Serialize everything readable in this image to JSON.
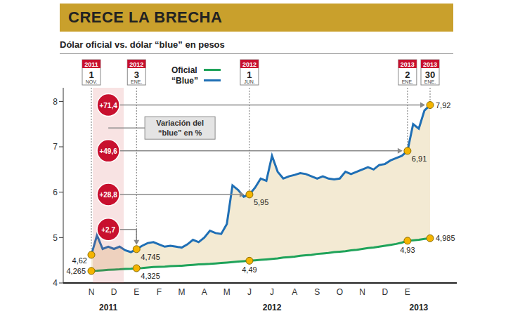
{
  "chart_data": {
    "type": "line",
    "title": "CRECE LA BRECHA",
    "subtitle": "Dólar oficial vs. dólar “blue” en pesos",
    "legend": "top",
    "grid": false,
    "categories": [
      "N",
      null,
      null,
      null,
      "D",
      null,
      null,
      null,
      "E",
      null,
      null,
      null,
      "F",
      null,
      null,
      null,
      "M",
      null,
      null,
      null,
      "A",
      null,
      null,
      null,
      "M",
      null,
      null,
      null,
      "J",
      null,
      null,
      null,
      "J",
      null,
      null,
      null,
      "A",
      null,
      null,
      null,
      "S",
      null,
      null,
      null,
      "O",
      null,
      null,
      null,
      "N",
      null,
      null,
      null,
      "D",
      null,
      null,
      null,
      "E",
      null,
      null,
      null,
      null
    ],
    "year_labels": [
      null,
      null,
      null,
      "2011",
      null,
      null,
      null,
      null,
      null,
      null,
      null,
      null,
      null,
      null,
      null,
      null,
      null,
      null,
      null,
      null,
      null,
      null,
      null,
      null,
      null,
      null,
      null,
      null,
      null,
      null,
      null,
      null,
      "2012",
      null,
      null,
      null,
      null,
      null,
      null,
      null,
      null,
      null,
      null,
      null,
      null,
      null,
      null,
      null,
      null,
      null,
      null,
      null,
      null,
      null,
      null,
      null,
      null,
      null,
      "2013",
      null,
      null
    ],
    "series": [
      {
        "name": "Oficial",
        "color": "#1fa35a",
        "values": [
          4.265,
          4.27,
          4.28,
          4.29,
          4.295,
          4.3,
          4.31,
          4.315,
          4.325,
          4.33,
          4.34,
          4.35,
          4.355,
          4.36,
          4.37,
          4.375,
          4.38,
          4.39,
          4.4,
          4.41,
          4.415,
          4.42,
          4.43,
          4.44,
          4.45,
          4.46,
          4.47,
          4.48,
          4.49,
          4.5,
          4.51,
          4.52,
          4.53,
          4.54,
          4.56,
          4.57,
          4.58,
          4.6,
          4.61,
          4.62,
          4.64,
          4.65,
          4.66,
          4.68,
          4.69,
          4.7,
          4.72,
          4.73,
          4.75,
          4.77,
          4.78,
          4.8,
          4.82,
          4.84,
          4.86,
          4.89,
          4.93,
          4.94,
          4.95,
          4.97,
          4.985
        ]
      },
      {
        "name": "“Blue”",
        "color": "#1f6fb5",
        "values": [
          4.62,
          5.05,
          4.75,
          4.8,
          4.75,
          4.8,
          4.72,
          4.68,
          4.745,
          4.82,
          4.88,
          4.9,
          4.85,
          4.8,
          4.82,
          4.8,
          4.78,
          4.85,
          4.95,
          4.9,
          5.0,
          5.15,
          5.1,
          5.08,
          5.3,
          6.15,
          6.05,
          5.9,
          5.95,
          6.1,
          6.3,
          6.25,
          6.8,
          6.45,
          6.3,
          6.35,
          6.38,
          6.42,
          6.4,
          6.35,
          6.3,
          6.35,
          6.3,
          6.28,
          6.3,
          6.45,
          6.4,
          6.45,
          6.5,
          6.55,
          6.5,
          6.6,
          6.62,
          6.7,
          6.75,
          6.8,
          6.91,
          7.5,
          7.4,
          7.8,
          7.92
        ]
      }
    ],
    "ylim": [
      4,
      8.3
    ],
    "yticks": [
      4,
      5,
      6,
      7,
      8
    ],
    "markers": [
      {
        "at": 0,
        "year": "2011",
        "day": "1",
        "month": "NOV."
      },
      {
        "at": 8,
        "year": "2012",
        "day": "3",
        "month": "ENE."
      },
      {
        "at": 28,
        "year": "2012",
        "day": "1",
        "month": "JUN."
      },
      {
        "at": 56,
        "year": "2013",
        "day": "2",
        "month": "ENE."
      },
      {
        "at": 60,
        "year": "2013",
        "day": "30",
        "month": "ENE."
      }
    ],
    "point_labels": [
      {
        "series": "“Blue”",
        "at": 0,
        "value": 4.62,
        "label": "4,62"
      },
      {
        "series": "Oficial",
        "at": 0,
        "value": 4.265,
        "label": "4,265"
      },
      {
        "series": "“Blue”",
        "at": 8,
        "value": 4.745,
        "label": "4,745"
      },
      {
        "series": "Oficial",
        "at": 8,
        "value": 4.325,
        "label": "4,325"
      },
      {
        "series": "“Blue”",
        "at": 28,
        "value": 5.95,
        "label": "5,95"
      },
      {
        "series": "Oficial",
        "at": 28,
        "value": 4.49,
        "label": "4,49"
      },
      {
        "series": "“Blue”",
        "at": 56,
        "value": 6.91,
        "label": "6,91"
      },
      {
        "series": "Oficial",
        "at": 56,
        "value": 4.93,
        "label": "4,93"
      },
      {
        "series": "“Blue”",
        "at": 60,
        "value": 7.92,
        "label": "7,92"
      },
      {
        "series": "Oficial",
        "at": 60,
        "value": 4.985,
        "label": "4,985"
      }
    ],
    "variations_title": "Variación del “blue” en %",
    "variations": [
      {
        "at": 60,
        "value": 71.4,
        "label": "+71,4"
      },
      {
        "at": 56,
        "value": 49.6,
        "label": "+49,6"
      },
      {
        "at": 28,
        "value": 28.8,
        "label": "+28,8"
      },
      {
        "at": 8,
        "value": 2.7,
        "label": "+2,7"
      }
    ]
  }
}
